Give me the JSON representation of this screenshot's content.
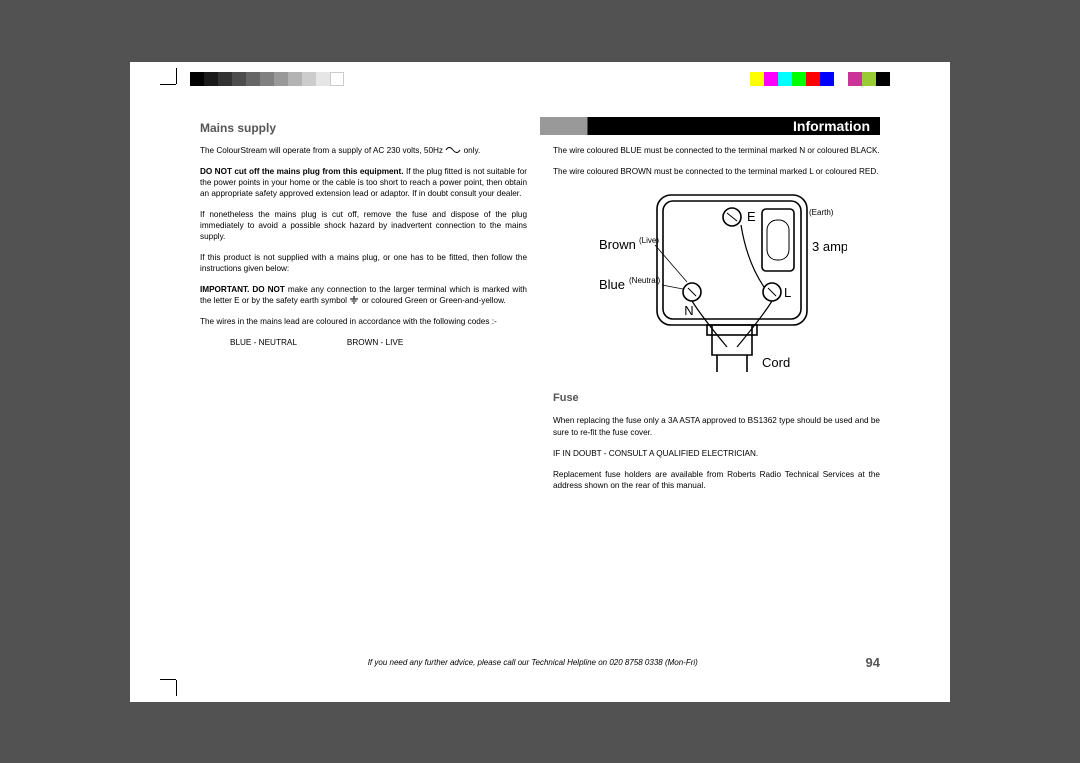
{
  "colorBars": {
    "gray": [
      "#000000",
      "#1a1a1a",
      "#333333",
      "#4d4d4d",
      "#666666",
      "#808080",
      "#999999",
      "#b3b3b3",
      "#cccccc",
      "#e6e6e6",
      "#ffffff"
    ],
    "color": [
      "#ffff00",
      "#ff00ff",
      "#00ffff",
      "#00ff00",
      "#ff0000",
      "#0000ff",
      "#ffffff",
      "#cc3399",
      "#99cc33",
      "#000000"
    ]
  },
  "header": {
    "sectionTitle": "Mains supply",
    "infoBanner": "Information"
  },
  "leftColumn": {
    "p1_a": "The ColourStream will operate from a supply of AC 230 volts, 50Hz ",
    "p1_b": " only.",
    "p2_bold": "DO NOT cut off the mains plug from this equipment.",
    "p2_rest": " If the plug fitted is not suitable for the power points in your home or the cable is too short to reach a power point, then obtain an appropriate safety approved extension lead or adaptor. If in doubt consult your dealer.",
    "p3": "If nonetheless the mains plug is cut off, remove the fuse and dispose of the plug immediately to avoid a possible shock hazard by inadvertent connection to the mains supply.",
    "p4": "If this product is not supplied with a mains plug, or one has to be fitted, then follow the instructions given below:",
    "p5_bold": "IMPORTANT. DO NOT",
    "p5_rest": " make any connection to the larger terminal which is marked with the letter E or by the safety earth symbol ",
    "p5_end": " or coloured Green or Green-and-yellow.",
    "p6": "The wires in the mains lead are coloured in accordance with the following codes :-",
    "code1": "BLUE - NEUTRAL",
    "code2": "BROWN - LIVE"
  },
  "rightColumn": {
    "p1": "The wire coloured BLUE must be connected to the terminal marked N or coloured BLACK.",
    "p2": "The wire coloured BROWN must be connected to the terminal marked L or coloured RED.",
    "fuseHeading": "Fuse",
    "p3": "When replacing the fuse only a 3A ASTA approved to BS1362 type should be used and be sure to re-fit the fuse cover.",
    "consult": "IF IN DOUBT - CONSULT  A  QUALIFIED ELECTRICIAN.",
    "p4": "Replacement fuse holders are available from Roberts Radio Technical Services at the address shown on the rear of this manual."
  },
  "plug": {
    "labels": {
      "brown": "Brown",
      "live": "(Live)",
      "blue": "Blue",
      "neutral": "(Neutral)",
      "cord": "Cord",
      "amp": "3 amp",
      "E": "E",
      "earth": "(Earth)",
      "L": "L",
      "N": "N"
    },
    "stroke": "#000000",
    "strokeWidth": 1.6
  },
  "footer": {
    "helpline": "If you need any further advice, please call our Technical Helpline on 020 8758 0338 (Mon-Fri)",
    "pageNumber": "94"
  }
}
